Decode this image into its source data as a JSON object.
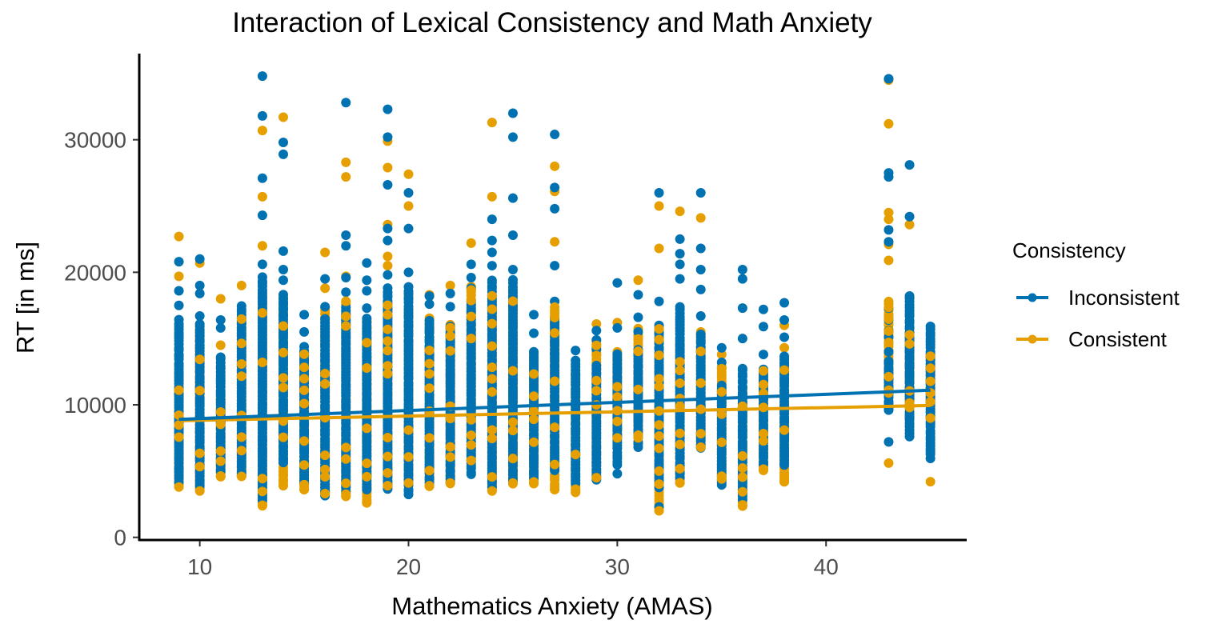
{
  "chart_data": {
    "type": "scatter",
    "title": "Interaction of Lexical Consistency and Math Anxiety",
    "xlabel": "Mathematics Anxiety (AMAS)",
    "ylabel": "RT [in ms]",
    "xlim": [
      7.1,
      46.7
    ],
    "ylim": [
      -200,
      36500
    ],
    "xticks": [
      10,
      20,
      30,
      40
    ],
    "xtick_labels": [
      "10",
      "20",
      "30",
      "40"
    ],
    "yticks": [
      0,
      10000,
      20000,
      30000
    ],
    "ytick_labels": [
      "0",
      "10000",
      "20000",
      "30000"
    ],
    "grid": false,
    "legend": {
      "title": "Consistency",
      "placement": "right",
      "entries": [
        {
          "label": "Inconsistent",
          "color": "#0072B2"
        },
        {
          "label": "Consistent",
          "color": "#E69F00"
        }
      ]
    },
    "series": [
      {
        "name": "Inconsistent",
        "color": "#0072B2",
        "columns": [
          {
            "x": 9,
            "dense": [
              4200,
              16500
            ],
            "points": [
              17500,
              18600,
              20800
            ]
          },
          {
            "x": 10,
            "dense": [
              3900,
              16200
            ],
            "points": [
              16700,
              18400,
              19000,
              21000
            ]
          },
          {
            "x": 11,
            "dense": [
              4900,
              13800
            ],
            "points": [
              15800,
              16400
            ]
          },
          {
            "x": 12,
            "dense": [
              4600,
              17700
            ],
            "points": []
          },
          {
            "x": 13,
            "dense": [
              2800,
              19800
            ],
            "points": [
              20600,
              24300,
              27100,
              31800,
              34800
            ]
          },
          {
            "x": 14,
            "dense": [
              5600,
              18300
            ],
            "points": [
              19400,
              20200,
              21600,
              28900,
              29800
            ]
          },
          {
            "x": 15,
            "dense": [
              4000,
              14400
            ],
            "points": [
              15500,
              16800
            ]
          },
          {
            "x": 16,
            "dense": [
              3100,
              16500
            ],
            "points": [
              17400,
              19500
            ]
          },
          {
            "x": 17,
            "dense": [
              3500,
              17500
            ],
            "points": [
              18500,
              19600,
              22000,
              22800,
              32800
            ]
          },
          {
            "x": 18,
            "dense": [
              3600,
              16700
            ],
            "points": [
              17300,
              18600,
              19400,
              20700
            ]
          },
          {
            "x": 19,
            "dense": [
              3600,
              19000
            ],
            "points": [
              19800,
              22400,
              23300,
              26600,
              30200,
              32300
            ]
          },
          {
            "x": 20,
            "dense": [
              3200,
              18900
            ],
            "points": [
              20000,
              23300,
              26000
            ]
          },
          {
            "x": 21,
            "dense": [
              4100,
              16500
            ],
            "points": [
              17600,
              18200
            ]
          },
          {
            "x": 22,
            "dense": [
              4200,
              16000
            ],
            "points": [
              17400,
              18400
            ]
          },
          {
            "x": 23,
            "dense": [
              4700,
              18000
            ],
            "points": [
              18800,
              19600,
              20600
            ]
          },
          {
            "x": 24,
            "dense": [
              3800,
              19500
            ],
            "points": [
              20500,
              21500,
              22400,
              24000
            ]
          },
          {
            "x": 25,
            "dense": [
              4200,
              19500
            ],
            "points": [
              20200,
              22800,
              25600,
              30200,
              32000
            ]
          },
          {
            "x": 26,
            "dense": [
              4400,
              14100
            ],
            "points": [
              15400,
              16800
            ]
          },
          {
            "x": 27,
            "dense": [
              5000,
              16600
            ],
            "points": [
              17800,
              20500,
              24800,
              26400,
              30400
            ]
          },
          {
            "x": 28,
            "dense": [
              4100,
              13300
            ],
            "points": [
              14100
            ]
          },
          {
            "x": 29,
            "dense": [
              4400,
              13000
            ],
            "points": [
              14200,
              14900,
              15600
            ]
          },
          {
            "x": 30,
            "dense": [
              5500,
              13800
            ],
            "points": [
              4800,
              15800,
              19200
            ]
          },
          {
            "x": 31,
            "dense": [
              6800,
              14300
            ],
            "points": [
              15500,
              16600,
              18300
            ]
          },
          {
            "x": 32,
            "dense": [
              3800,
              16200
            ],
            "points": [
              2300,
              17800,
              26000
            ]
          },
          {
            "x": 33,
            "dense": [
              4500,
              17600
            ],
            "points": [
              19500,
              20600,
              21400,
              22500
            ]
          },
          {
            "x": 34,
            "dense": [
              6800,
              15500
            ],
            "points": [
              16700,
              18700,
              20200,
              21800,
              26000
            ]
          },
          {
            "x": 35,
            "dense": [
              3900,
              11700
            ],
            "points": [
              13200,
              14300
            ]
          },
          {
            "x": 36,
            "dense": [
              2900,
              13000
            ],
            "points": [
              15000,
              17300,
              19500,
              20200
            ]
          },
          {
            "x": 37,
            "dense": [
              5500,
              12800
            ],
            "points": [
              13800,
              15900,
              17200
            ]
          },
          {
            "x": 38,
            "dense": [
              5400,
              13800
            ],
            "points": [
              15100,
              16400,
              17700
            ]
          },
          {
            "x": 43,
            "dense": [
              9600,
              13300
            ],
            "points": [
              7200,
              9700,
              14000,
              15100,
              15600,
              16400,
              17300,
              22300,
              23200,
              27200,
              27500,
              34600
            ]
          },
          {
            "x": 44,
            "dense": [
              7900,
              18300
            ],
            "points": [
              7600,
              9000,
              13000,
              14100,
              24200,
              28100
            ]
          },
          {
            "x": 45,
            "dense": [
              6000,
              16000
            ],
            "points": []
          }
        ],
        "regression": {
          "x": [
            9,
            45
          ],
          "y": [
            8900,
            11100
          ]
        }
      },
      {
        "name": "Consistent",
        "color": "#E69F00",
        "columns": [
          {
            "x": 9,
            "dense": [
              3800,
              12500
            ],
            "points": [
              19700,
              22700
            ]
          },
          {
            "x": 10,
            "dense": [
              3500,
              15800
            ],
            "points": [
              20700
            ]
          },
          {
            "x": 11,
            "dense": [
              4600,
              10600
            ],
            "points": [
              14500,
              18000
            ]
          },
          {
            "x": 12,
            "dense": [
              4600,
              16500
            ],
            "points": [
              19000
            ]
          },
          {
            "x": 13,
            "dense": [
              2400,
              18600
            ],
            "points": [
              22000,
              25700,
              30700
            ]
          },
          {
            "x": 14,
            "dense": [
              3900,
              18300
            ],
            "points": [
              31700
            ]
          },
          {
            "x": 15,
            "dense": [
              3600,
              14000
            ],
            "points": []
          },
          {
            "x": 16,
            "dense": [
              3300,
              17500
            ],
            "points": [
              18800,
              21500
            ]
          },
          {
            "x": 17,
            "dense": [
              3100,
              18000
            ],
            "points": [
              19700,
              27200,
              28300
            ]
          },
          {
            "x": 18,
            "dense": [
              2600,
              16500
            ],
            "points": []
          },
          {
            "x": 19,
            "dense": [
              3900,
              17500
            ],
            "points": [
              20500,
              21200,
              23600,
              27900,
              29900
            ]
          },
          {
            "x": 20,
            "dense": [
              4100,
              17300
            ],
            "points": [
              18300,
              25000,
              27400
            ]
          },
          {
            "x": 21,
            "dense": [
              3900,
              16700
            ],
            "points": [
              18300
            ]
          },
          {
            "x": 22,
            "dense": [
              4100,
              16200
            ],
            "points": [
              19000
            ]
          },
          {
            "x": 23,
            "dense": [
              5800,
              19000
            ],
            "points": [
              22200
            ]
          },
          {
            "x": 24,
            "dense": [
              3500,
              18200
            ],
            "points": [
              25700,
              31300
            ]
          },
          {
            "x": 25,
            "dense": [
              4100,
              17800
            ],
            "points": []
          },
          {
            "x": 26,
            "dense": [
              4100,
              13800
            ],
            "points": []
          },
          {
            "x": 27,
            "dense": [
              3600,
              17200
            ],
            "points": [
              22300,
              26100,
              28000
            ]
          },
          {
            "x": 28,
            "dense": [
              3400,
              12600
            ],
            "points": []
          },
          {
            "x": 29,
            "dense": [
              4500,
              15000
            ],
            "points": [
              16100
            ]
          },
          {
            "x": 30,
            "dense": [
              7500,
              14000
            ],
            "points": [
              16200
            ]
          },
          {
            "x": 31,
            "dense": [
              7500,
              16000
            ],
            "points": [
              19400
            ]
          },
          {
            "x": 32,
            "dense": [
              2000,
              15600
            ],
            "points": [
              21800,
              25000
            ]
          },
          {
            "x": 33,
            "dense": [
              4100,
              14900
            ],
            "points": [
              15800,
              24600
            ]
          },
          {
            "x": 34,
            "dense": [
              6800,
              15600
            ],
            "points": [
              24100
            ]
          },
          {
            "x": 35,
            "dense": [
              4400,
              13000
            ],
            "points": [
              13800
            ]
          },
          {
            "x": 36,
            "dense": [
              2400,
              11500
            ],
            "points": []
          },
          {
            "x": 37,
            "dense": [
              5100,
              12600
            ],
            "points": [
              12500
            ]
          },
          {
            "x": 38,
            "dense": [
              4200,
              13500
            ],
            "points": [
              14300,
              16000
            ]
          },
          {
            "x": 43,
            "dense": [
              10900,
              17800
            ],
            "points": [
              5600,
              20900,
              22100,
              24000,
              24500,
              31200,
              34500
            ]
          },
          {
            "x": 44,
            "dense": [
              9800,
              15500
            ],
            "points": [
              12800,
              13500,
              18000,
              23600
            ]
          },
          {
            "x": 45,
            "dense": [
              9000,
              14000
            ],
            "points": [
              4200
            ]
          }
        ],
        "regression": {
          "x": [
            9,
            45
          ],
          "y": [
            8800,
            9950
          ]
        }
      }
    ]
  }
}
